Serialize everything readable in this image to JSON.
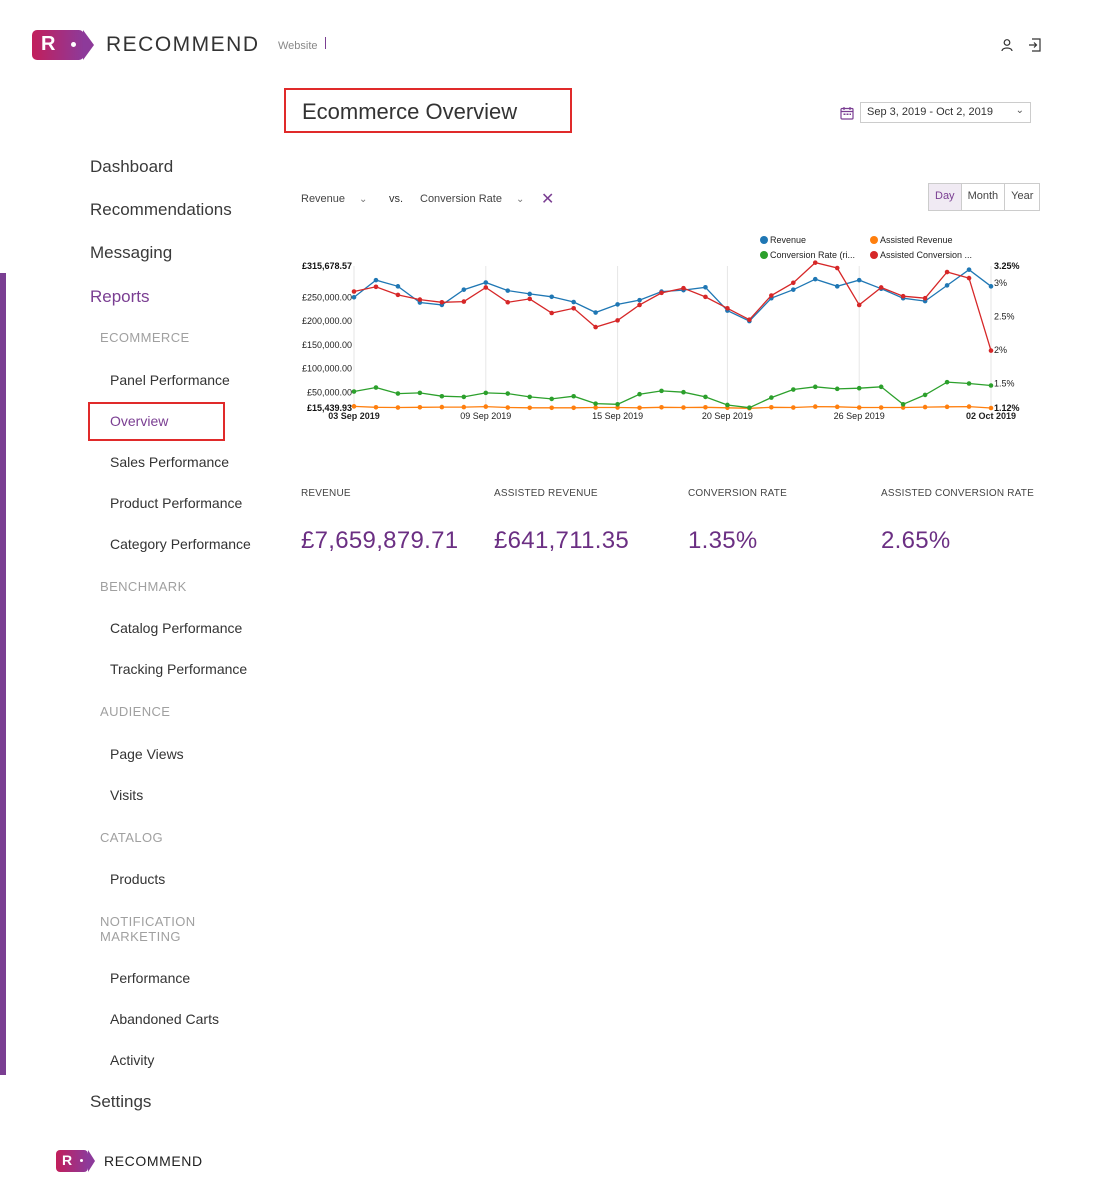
{
  "app": {
    "logo_text": "RECOMMEND",
    "logo_letter": "R",
    "website_label": "Website"
  },
  "page": {
    "title": "Ecommerce Overview",
    "date_range": "Sep 3, 2019 - Oct 2, 2019"
  },
  "sidebar": {
    "dashboard": "Dashboard",
    "recommendations": "Recommendations",
    "messaging": "Messaging",
    "reports": "Reports",
    "ecommerce": "ECOMMERCE",
    "panel_performance": "Panel Performance",
    "overview": "Overview",
    "sales_performance": "Sales Performance",
    "product_performance": "Product Performance",
    "category_performance": "Category Performance",
    "benchmark": "BENCHMARK",
    "catalog_performance": "Catalog Performance",
    "tracking_performance": "Tracking Performance",
    "audience": "AUDIENCE",
    "page_views": "Page Views",
    "visits": "Visits",
    "catalog": "CATALOG",
    "products": "Products",
    "notification_line1": "NOTIFICATION",
    "notification_line2": "MARKETING",
    "performance": "Performance",
    "abandoned_carts": "Abandoned Carts",
    "activity": "Activity",
    "settings": "Settings"
  },
  "controls": {
    "metric_primary": "Revenue",
    "vs_label": "vs.",
    "metric_secondary": "Conversion Rate",
    "period_day": "Day",
    "period_month": "Month",
    "period_year": "Year"
  },
  "chart_data": {
    "type": "line",
    "title": "",
    "x": [
      "03 Sep 2019",
      "04 Sep 2019",
      "05 Sep 2019",
      "06 Sep 2019",
      "07 Sep 2019",
      "08 Sep 2019",
      "09 Sep 2019",
      "10 Sep 2019",
      "11 Sep 2019",
      "12 Sep 2019",
      "13 Sep 2019",
      "14 Sep 2019",
      "15 Sep 2019",
      "16 Sep 2019",
      "17 Sep 2019",
      "18 Sep 2019",
      "19 Sep 2019",
      "20 Sep 2019",
      "21 Sep 2019",
      "22 Sep 2019",
      "23 Sep 2019",
      "24 Sep 2019",
      "25 Sep 2019",
      "26 Sep 2019",
      "27 Sep 2019",
      "28 Sep 2019",
      "29 Sep 2019",
      "30 Sep 2019",
      "01 Oct 2019",
      "02 Oct 2019"
    ],
    "x_tick_labels": [
      "03 Sep 2019",
      "09 Sep 2019",
      "15 Sep 2019",
      "20 Sep 2019",
      "26 Sep 2019",
      "02 Oct 2019"
    ],
    "x_tick_index": [
      0,
      6,
      12,
      17,
      23,
      29
    ],
    "left_axis": {
      "range": [
        15439.93,
        315678.57
      ],
      "ticks": [
        50000,
        100000,
        150000,
        200000,
        250000
      ],
      "tick_labels": [
        "£50,000.00",
        "£100,000.00",
        "£150,000.00",
        "£200,000.00",
        "£250,000.00"
      ],
      "min_label": "£15,439.93",
      "max_label": "£315,678.57"
    },
    "right_axis": {
      "range": [
        1.12,
        3.25
      ],
      "ticks": [
        1.5,
        2,
        2.5,
        3
      ],
      "tick_labels": [
        "1.5%",
        "2%",
        "2.5%",
        "3%"
      ],
      "min_label": "1.12%",
      "max_label": "3.25%"
    },
    "legend_position": "top-right",
    "series": [
      {
        "name": "Revenue",
        "axis": "left",
        "color": "#1f77b4",
        "values": [
          250000,
          286000,
          273000,
          239000,
          234000,
          266000,
          281000,
          264000,
          257000,
          251000,
          240000,
          218000,
          235000,
          244000,
          262000,
          265000,
          271000,
          222000,
          200000,
          248000,
          266000,
          288000,
          273000,
          286000,
          268000,
          248000,
          242000,
          275000,
          308000,
          273000
        ]
      },
      {
        "name": "Assisted Revenue",
        "axis": "left",
        "color": "#ff7f0e",
        "values": [
          21000,
          19000,
          18500,
          19000,
          19500,
          19500,
          20500,
          18500,
          18000,
          18000,
          18000,
          18500,
          18500,
          18000,
          19000,
          18500,
          19000,
          18000,
          17000,
          19000,
          18500,
          20500,
          20000,
          18500,
          18500,
          18500,
          19500,
          20000,
          20500,
          17500
        ]
      },
      {
        "name": "Conversion Rate (right axis)",
        "legend_label": "Conversion Rate (ri...",
        "axis": "right",
        "color": "#2ca02c",
        "values": [
          1.38,
          1.44,
          1.35,
          1.36,
          1.31,
          1.3,
          1.36,
          1.35,
          1.3,
          1.27,
          1.31,
          1.2,
          1.19,
          1.34,
          1.39,
          1.37,
          1.3,
          1.18,
          1.14,
          1.29,
          1.41,
          1.45,
          1.42,
          1.43,
          1.45,
          1.19,
          1.33,
          1.52,
          1.5,
          1.47
        ]
      },
      {
        "name": "Assisted Conversion Rate (right axis)",
        "legend_label": "Assisted Conversion ...",
        "axis": "right",
        "color": "#d62728",
        "values": [
          2.87,
          2.94,
          2.82,
          2.75,
          2.71,
          2.72,
          2.93,
          2.71,
          2.76,
          2.55,
          2.62,
          2.34,
          2.44,
          2.67,
          2.85,
          2.92,
          2.79,
          2.62,
          2.45,
          2.81,
          3.0,
          3.3,
          3.22,
          2.67,
          2.93,
          2.8,
          2.77,
          3.16,
          3.07,
          1.99
        ]
      }
    ]
  },
  "kpis": [
    {
      "label": "REVENUE",
      "value": "£7,659,879.71"
    },
    {
      "label": "ASSISTED REVENUE",
      "value": "£641,711.35"
    },
    {
      "label": "CONVERSION RATE",
      "value": "1.35%"
    },
    {
      "label": "ASSISTED CONVERSION RATE",
      "value": "2.65%"
    }
  ],
  "colors": {
    "brand": "#7a3e92",
    "highlight": "#e02a2a"
  },
  "icons": [
    "user-icon",
    "logout-icon",
    "calendar-icon",
    "chevron-down-icon",
    "close-icon"
  ]
}
